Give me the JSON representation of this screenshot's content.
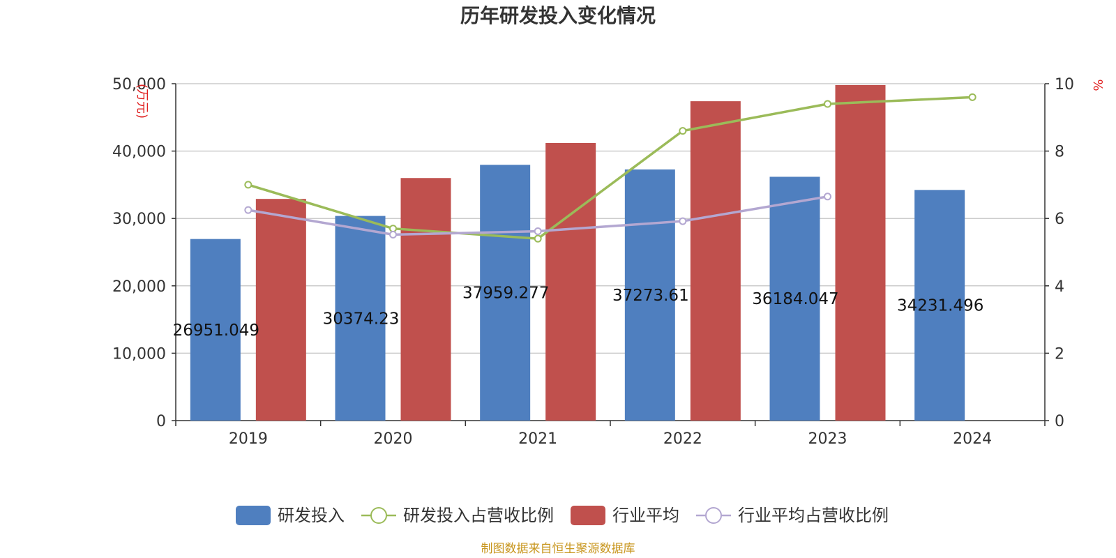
{
  "chart_data": {
    "type": "bar",
    "title": "历年研发投入变化情况",
    "ylabel_left": "(万元)",
    "ylabel_right": "%",
    "categories": [
      "2019",
      "2020",
      "2021",
      "2022",
      "2023",
      "2024"
    ],
    "ylim_left": [
      0,
      50000
    ],
    "yticks_left": [
      "0",
      "10,000",
      "20,000",
      "30,000",
      "40,000",
      "50,000"
    ],
    "ylim_right": [
      0,
      10
    ],
    "yticks_right": [
      "0",
      "2",
      "4",
      "6",
      "8",
      "10"
    ],
    "grid": true,
    "legend_position": "bottom",
    "series": [
      {
        "name": "研发投入",
        "kind": "bar",
        "axis": "left",
        "color": "#4f7fbf",
        "values": [
          26951.049,
          30374.23,
          37959.277,
          37273.61,
          36184.047,
          34231.496
        ],
        "labels": [
          "26951.049",
          "30374.23",
          "37959.277",
          "37273.61",
          "36184.047",
          "34231.496"
        ]
      },
      {
        "name": "研发投入占营收比例",
        "kind": "line",
        "axis": "right",
        "color": "#9bbb59",
        "values": [
          7.0,
          5.7,
          5.4,
          8.6,
          9.4,
          9.6
        ]
      },
      {
        "name": "行业平均",
        "kind": "bar",
        "axis": "left",
        "color": "#c0504d",
        "values": [
          32900,
          36000,
          41200,
          47400,
          49800,
          null
        ]
      },
      {
        "name": "行业平均占营收比例",
        "kind": "line",
        "axis": "right",
        "color": "#b3a7d1",
        "values": [
          6.25,
          5.52,
          5.62,
          5.92,
          6.65,
          null
        ]
      }
    ],
    "source": "制图数据来自恒生聚源数据库"
  }
}
